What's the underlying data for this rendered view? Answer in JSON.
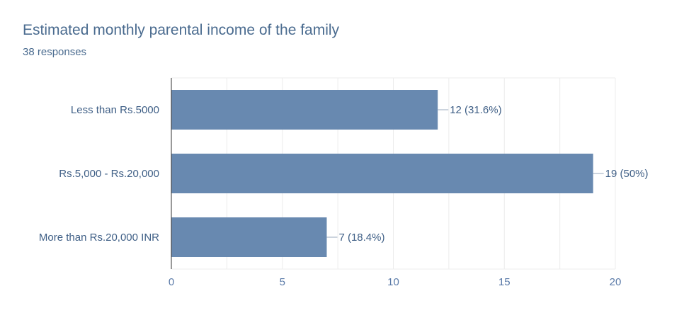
{
  "title": "Estimated monthly parental income of the family",
  "subtitle": "38 responses",
  "chart_data": {
    "type": "bar",
    "orientation": "horizontal",
    "categories": [
      "Less than Rs.5000",
      "Rs.5,000 - Rs.20,000",
      "More than Rs.20,000 INR"
    ],
    "values": [
      12,
      19,
      7
    ],
    "data_labels": [
      "12 (31.6%)",
      "19 (50%)",
      "7 (18.4%)"
    ],
    "xlim": [
      0,
      20
    ],
    "xticks": [
      "0",
      "5",
      "10",
      "15",
      "20"
    ],
    "grid": true,
    "legend": "none",
    "bar_color": "#6889b0"
  }
}
